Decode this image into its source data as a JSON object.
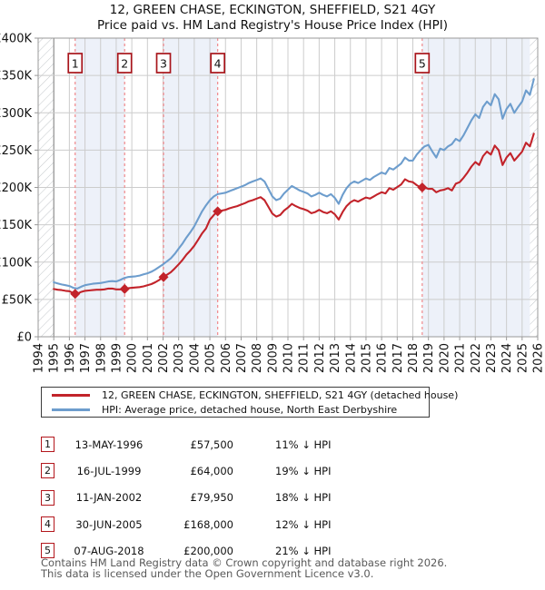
{
  "title": "12, GREEN CHASE, ECKINGTON, SHEFFIELD, S21 4GY",
  "subtitle": "Price paid vs. HM Land Registry's House Price Index (HPI)",
  "chart_data": {
    "type": "line",
    "title": "12, GREEN CHASE, ECKINGTON, SHEFFIELD, S21 4GY — Price paid vs. HPI",
    "xlabel": "",
    "ylabel": "Price (GBP)",
    "xlim": [
      1994,
      2026
    ],
    "ylim": [
      0,
      400000
    ],
    "grid": true,
    "legend_position": "below",
    "y_ticks": [
      0,
      50000,
      100000,
      150000,
      200000,
      250000,
      300000,
      350000,
      400000
    ],
    "y_tick_labels": [
      "£0",
      "£50K",
      "£100K",
      "£150K",
      "£200K",
      "£250K",
      "£300K",
      "£350K",
      "£400K"
    ],
    "x_tick_labels": [
      "1994",
      "1995",
      "1996",
      "1997",
      "1998",
      "1999",
      "2000",
      "2001",
      "2002",
      "2003",
      "2004",
      "2005",
      "2006",
      "2007",
      "2008",
      "2009",
      "2010",
      "2011",
      "2012",
      "2013",
      "2014",
      "2015",
      "2016",
      "2017",
      "2018",
      "2019",
      "2020",
      "2021",
      "2022",
      "2023",
      "2024",
      "2025",
      "2026"
    ],
    "x": [
      1995,
      1995.25,
      1995.5,
      1995.75,
      1996,
      1996.25,
      1996.5,
      1996.75,
      1997,
      1997.25,
      1997.5,
      1997.75,
      1998,
      1998.25,
      1998.5,
      1998.75,
      1999,
      1999.25,
      1999.5,
      1999.75,
      2000,
      2000.25,
      2000.5,
      2000.75,
      2001,
      2001.25,
      2001.5,
      2001.75,
      2002,
      2002.25,
      2002.5,
      2002.75,
      2003,
      2003.25,
      2003.5,
      2003.75,
      2004,
      2004.25,
      2004.5,
      2004.75,
      2005,
      2005.25,
      2005.5,
      2005.75,
      2006,
      2006.25,
      2006.5,
      2006.75,
      2007,
      2007.25,
      2007.5,
      2007.75,
      2008,
      2008.25,
      2008.5,
      2008.75,
      2009,
      2009.25,
      2009.5,
      2009.75,
      2010,
      2010.25,
      2010.5,
      2010.75,
      2011,
      2011.25,
      2011.5,
      2011.75,
      2012,
      2012.25,
      2012.5,
      2012.75,
      2013,
      2013.25,
      2013.5,
      2013.75,
      2014,
      2014.25,
      2014.5,
      2014.75,
      2015,
      2015.25,
      2015.5,
      2015.75,
      2016,
      2016.25,
      2016.5,
      2016.75,
      2017,
      2017.25,
      2017.5,
      2017.75,
      2018,
      2018.25,
      2018.5,
      2018.75,
      2019,
      2019.25,
      2019.5,
      2019.75,
      2020,
      2020.25,
      2020.5,
      2020.75,
      2021,
      2021.25,
      2021.5,
      2021.75,
      2022,
      2022.25,
      2022.5,
      2022.75,
      2023,
      2023.25,
      2023.5,
      2023.75,
      2024,
      2024.25,
      2024.5,
      2024.75,
      2025,
      2025.25,
      2025.5,
      2025.75
    ],
    "series": [
      {
        "name": "12, GREEN CHASE, ECKINGTON, SHEFFIELD, S21 4GY (detached house)",
        "color": "#c2232a",
        "values": [
          64000,
          63000,
          62500,
          61500,
          61000,
          58500,
          57500,
          60000,
          61500,
          62000,
          62500,
          63000,
          63000,
          63500,
          64500,
          64500,
          63500,
          63500,
          64000,
          65000,
          65500,
          66000,
          66500,
          67500,
          69000,
          70500,
          73000,
          76000,
          80000,
          83000,
          86500,
          91500,
          97000,
          103000,
          110000,
          115500,
          122000,
          130000,
          138500,
          145000,
          157000,
          163000,
          168000,
          169000,
          170000,
          172000,
          173500,
          175000,
          177000,
          179000,
          181500,
          183000,
          185000,
          187000,
          183000,
          174000,
          165000,
          161000,
          163000,
          169000,
          173000,
          178000,
          175000,
          172500,
          171000,
          169000,
          165500,
          167000,
          170000,
          167000,
          165500,
          168000,
          164000,
          157000,
          167000,
          175000,
          180000,
          183000,
          181000,
          184000,
          186500,
          185000,
          188000,
          191000,
          193500,
          192000,
          199000,
          197000,
          200500,
          204000,
          211000,
          208000,
          207000,
          203000,
          200000,
          200000,
          198000,
          198000,
          193500,
          196000,
          197000,
          199000,
          196000,
          205000,
          207000,
          213000,
          220000,
          228000,
          234000,
          230000,
          242000,
          248000,
          244000,
          256000,
          250000,
          230000,
          240000,
          246000,
          236000,
          242000,
          248000,
          260000,
          255000,
          272000
        ]
      },
      {
        "name": "HPI: Average price, detached house, North East Derbyshire",
        "color": "#6d9dcd",
        "values": [
          73000,
          71500,
          70000,
          69000,
          68000,
          65500,
          64500,
          67000,
          69000,
          70000,
          71000,
          71500,
          72000,
          73000,
          74000,
          74500,
          74000,
          76000,
          78500,
          80000,
          80500,
          81000,
          82000,
          83500,
          85000,
          87000,
          90000,
          93500,
          97000,
          101000,
          105000,
          111000,
          118000,
          125000,
          133000,
          140000,
          148000,
          158000,
          168000,
          176000,
          183000,
          188000,
          191000,
          192000,
          193000,
          195000,
          197000,
          199000,
          201000,
          203000,
          206000,
          208000,
          210000,
          212000,
          208000,
          198000,
          188000,
          183000,
          185000,
          192000,
          197000,
          202000,
          199000,
          196000,
          194000,
          192000,
          188000,
          190000,
          193000,
          190000,
          188000,
          191000,
          186000,
          178000,
          190000,
          199000,
          205000,
          208000,
          206000,
          209000,
          212000,
          210000,
          214000,
          217000,
          220000,
          218000,
          226000,
          224000,
          228000,
          232000,
          240000,
          236000,
          236000,
          244000,
          250000,
          255000,
          257000,
          248000,
          240000,
          252000,
          250000,
          255000,
          258000,
          265000,
          262000,
          270000,
          280000,
          290000,
          298000,
          293000,
          308000,
          315000,
          310000,
          325000,
          318000,
          292000,
          305000,
          312000,
          300000,
          308000,
          315000,
          330000,
          324000,
          345000
        ]
      }
    ],
    "sales": [
      {
        "num": "1",
        "x": 1996.37,
        "price": 57500
      },
      {
        "num": "2",
        "x": 1999.54,
        "price": 64000
      },
      {
        "num": "3",
        "x": 2002.03,
        "price": 79950
      },
      {
        "num": "4",
        "x": 2005.5,
        "price": 168000
      },
      {
        "num": "5",
        "x": 2018.6,
        "price": 200000
      }
    ],
    "ownership_bands": [
      [
        1996.37,
        1999.54
      ],
      [
        2002.03,
        2005.5
      ],
      [
        2018.6,
        2025.5
      ]
    ],
    "hatch_regions": [
      [
        1994,
        1995
      ],
      [
        2025.5,
        2026
      ]
    ],
    "colors": {
      "band_fill": "#edf1f9",
      "grid": "#cccccc",
      "axis_border": "#999999",
      "data_start_line": "#777777",
      "sale_dashed_line": "#f0898c",
      "marker_box_border": "#a8151b",
      "hatch_line": "#c2c6ca",
      "tick_text": "#111111"
    }
  },
  "legend": {
    "items": [
      {
        "label": "12, GREEN CHASE, ECKINGTON, SHEFFIELD, S21 4GY (detached house)",
        "color": "#c2232a"
      },
      {
        "label": "HPI: Average price, detached house, North East Derbyshire",
        "color": "#6d9dcd"
      }
    ]
  },
  "table": {
    "rows": [
      {
        "num": "1",
        "date": "13-MAY-1996",
        "price": "£57,500",
        "vs_hpi": "11% ↓ HPI"
      },
      {
        "num": "2",
        "date": "16-JUL-1999",
        "price": "£64,000",
        "vs_hpi": "19% ↓ HPI"
      },
      {
        "num": "3",
        "date": "11-JAN-2002",
        "price": "£79,950",
        "vs_hpi": "18% ↓ HPI"
      },
      {
        "num": "4",
        "date": "30-JUN-2005",
        "price": "£168,000",
        "vs_hpi": "12% ↓ HPI"
      },
      {
        "num": "5",
        "date": "07-AUG-2018",
        "price": "£200,000",
        "vs_hpi": "21% ↓ HPI"
      }
    ]
  },
  "footer": {
    "line1": "Contains HM Land Registry data © Crown copyright and database right 2026.",
    "line2": "This data is licensed under the Open Government Licence v3.0."
  }
}
